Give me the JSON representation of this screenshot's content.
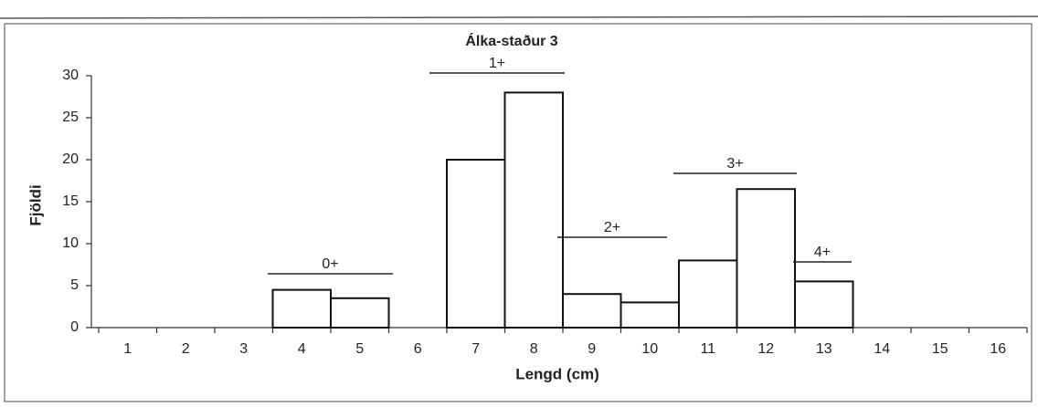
{
  "chart_data": {
    "type": "bar",
    "title": "Álka-staður 3",
    "x_label": "Lengd (cm)",
    "y_label": "Fjöldi",
    "categories": [
      "1",
      "2",
      "3",
      "4",
      "5",
      "6",
      "7",
      "8",
      "9",
      "10",
      "11",
      "12",
      "13",
      "14",
      "15",
      "16"
    ],
    "values": [
      0,
      0,
      0,
      4.5,
      3.5,
      0,
      20,
      28,
      4,
      3,
      8,
      16.5,
      5.5,
      0,
      0,
      0
    ],
    "color": "#ffffff",
    "edge_color": "#111111",
    "ylim": [
      0,
      30
    ],
    "yticks": [
      0,
      5,
      10,
      15,
      20,
      25,
      30
    ],
    "grid": false,
    "annotations": [
      "0+",
      "1+",
      "2+",
      "3+",
      "4+"
    ]
  }
}
